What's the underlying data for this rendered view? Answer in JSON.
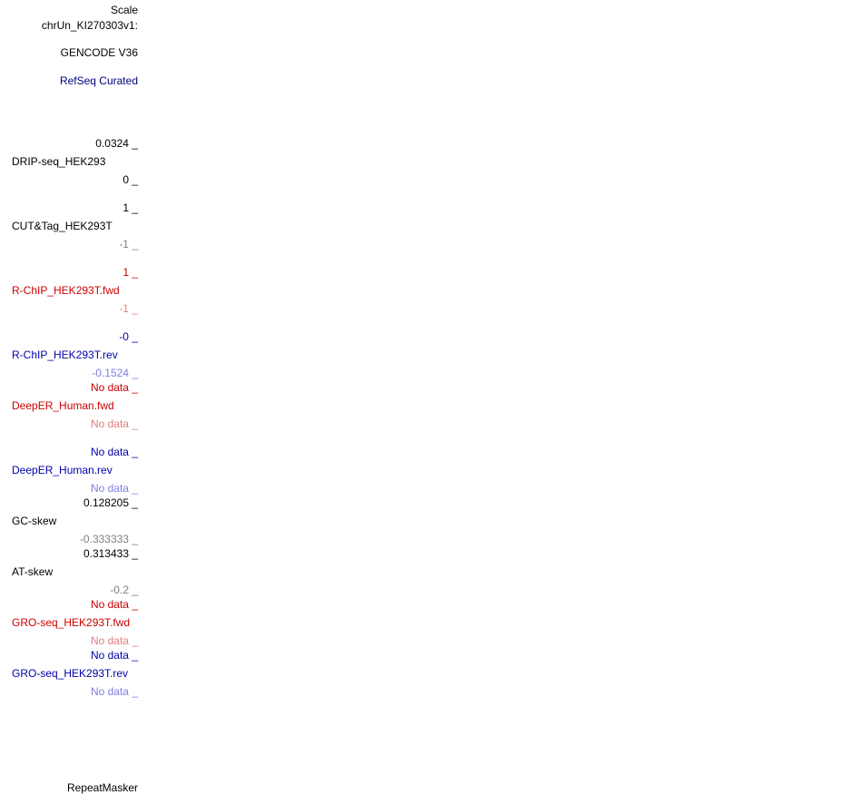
{
  "header": {
    "scale": "Scale",
    "chrom": "chrUn_KI270303v1:"
  },
  "tracks": {
    "gencode": "GENCODE V36",
    "refseq": "RefSeq Curated",
    "drip": {
      "max": "0.0324 _",
      "name": "DRIP-seq_HEK293",
      "min": "0 _"
    },
    "cuttag": {
      "max": "1 _",
      "name": "CUT&Tag_HEK293T",
      "min": "-1 _"
    },
    "rchip_fwd": {
      "max": "1 _",
      "name": "R-ChIP_HEK293T.fwd",
      "min": "-1 _"
    },
    "rchip_rev": {
      "max": "-0 _",
      "name": "R-ChIP_HEK293T.rev",
      "min": "-0.1524 _"
    },
    "deeper_fwd": {
      "max": "No data _",
      "name": "DeepER_Human.fwd",
      "min": "No data _"
    },
    "deeper_rev": {
      "max": "No data _",
      "name": "DeepER_Human.rev",
      "min": "No data _"
    },
    "gcskew": {
      "max": "0.128205 _",
      "name": "GC-skew",
      "min": "-0.333333 _"
    },
    "atskew": {
      "max": "0.313433 _",
      "name": "AT-skew",
      "min": "-0.2 _"
    },
    "gro_fwd": {
      "max": "No data _",
      "name": "GRO-seq_HEK293T.fwd",
      "min": "No data _"
    },
    "gro_rev": {
      "max": "No data _",
      "name": "GRO-seq_HEK293T.rev",
      "min": "No data _"
    },
    "repeatmasker": "RepeatMasker"
  },
  "colors": {
    "black": "#000000",
    "navy": "#000080",
    "red": "#cc0000",
    "blue": "#0000c0",
    "grey": "#7f7f7f"
  }
}
